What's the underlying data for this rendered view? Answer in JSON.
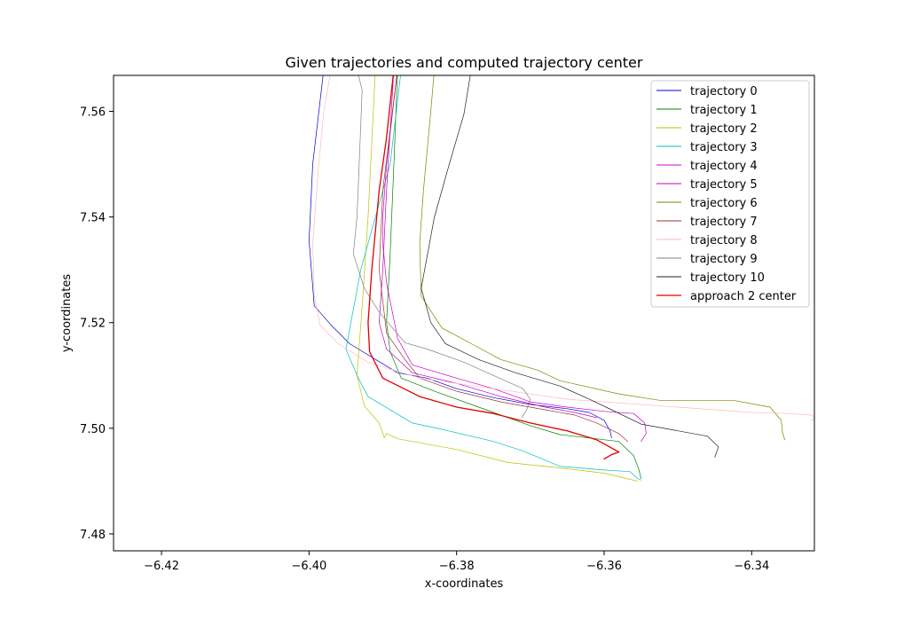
{
  "chart_data": {
    "type": "line",
    "title": "Given trajectories and computed trajectory center",
    "xlabel": "x-coordinates",
    "ylabel": "y-coordinates",
    "xlim": [
      -6.4265,
      -6.3315
    ],
    "ylim": [
      7.4768,
      7.5668
    ],
    "xticks": [
      {
        "value": -6.42,
        "label": "−6.42"
      },
      {
        "value": -6.4,
        "label": "−6.40"
      },
      {
        "value": -6.38,
        "label": "−6.38"
      },
      {
        "value": -6.36,
        "label": "−6.36"
      },
      {
        "value": -6.34,
        "label": "−6.34"
      }
    ],
    "yticks": [
      {
        "value": 7.48,
        "label": "7.48"
      },
      {
        "value": 7.5,
        "label": "7.50"
      },
      {
        "value": 7.52,
        "label": "7.52"
      },
      {
        "value": 7.54,
        "label": "7.54"
      },
      {
        "value": 7.56,
        "label": "7.56"
      }
    ],
    "grid": false,
    "legend_position": "top-right",
    "series": [
      {
        "name": "trajectory 0",
        "color": "#0000cc",
        "width": 0.7,
        "points": [
          [
            -6.398,
            7.568
          ],
          [
            -6.3995,
            7.55
          ],
          [
            -6.4,
            7.5355
          ],
          [
            -6.3993,
            7.5232
          ],
          [
            -6.397,
            7.5195
          ],
          [
            -6.3945,
            7.516
          ],
          [
            -6.388,
            7.5105
          ],
          [
            -6.384,
            7.5095
          ],
          [
            -6.38,
            7.5075
          ],
          [
            -6.375,
            7.5058
          ],
          [
            -6.37,
            7.5045
          ],
          [
            -6.365,
            7.5037
          ],
          [
            -6.362,
            7.503
          ],
          [
            -6.36,
            7.5015
          ],
          [
            -6.3592,
            7.4995
          ],
          [
            -6.359,
            7.4982
          ]
        ]
      },
      {
        "name": "trajectory 1",
        "color": "#008000",
        "width": 0.7,
        "points": [
          [
            -6.388,
            7.568
          ],
          [
            -6.3885,
            7.55
          ],
          [
            -6.389,
            7.533
          ],
          [
            -6.3895,
            7.52
          ],
          [
            -6.389,
            7.5145
          ],
          [
            -6.3875,
            7.5095
          ],
          [
            -6.383,
            7.507
          ],
          [
            -6.376,
            7.5035
          ],
          [
            -6.37,
            7.5005
          ],
          [
            -6.366,
            7.4988
          ],
          [
            -6.358,
            7.4975
          ],
          [
            -6.356,
            7.4948
          ],
          [
            -6.3553,
            7.4922
          ],
          [
            -6.355,
            7.4905
          ]
        ]
      },
      {
        "name": "trajectory 2",
        "color": "#bfbf00",
        "width": 0.7,
        "points": [
          [
            -6.391,
            7.568
          ],
          [
            -6.392,
            7.54
          ],
          [
            -6.3928,
            7.523
          ],
          [
            -6.3935,
            7.51
          ],
          [
            -6.3925,
            7.5042
          ],
          [
            -6.3905,
            7.501
          ],
          [
            -6.3898,
            7.4982
          ],
          [
            -6.3895,
            7.499
          ],
          [
            -6.388,
            7.498
          ],
          [
            -6.38,
            7.496
          ],
          [
            -6.373,
            7.4935
          ],
          [
            -6.366,
            7.4925
          ],
          [
            -6.36,
            7.4915
          ],
          [
            -6.3555,
            7.49
          ]
        ]
      },
      {
        "name": "trajectory 3",
        "color": "#00bfbf",
        "width": 0.7,
        "points": [
          [
            -6.3875,
            7.568
          ],
          [
            -6.389,
            7.55
          ],
          [
            -6.391,
            7.54
          ],
          [
            -6.393,
            7.53
          ],
          [
            -6.395,
            7.515
          ],
          [
            -6.3935,
            7.51
          ],
          [
            -6.392,
            7.506
          ],
          [
            -6.386,
            7.501
          ],
          [
            -6.382,
            7.4998
          ],
          [
            -6.375,
            7.4975
          ],
          [
            -6.371,
            7.4957
          ],
          [
            -6.366,
            7.4928
          ],
          [
            -6.36,
            7.4921
          ],
          [
            -6.3565,
            7.4918
          ],
          [
            -6.3555,
            7.4905
          ],
          [
            -6.355,
            7.4902
          ]
        ]
      },
      {
        "name": "trajectory 4",
        "color": "#cc00cc",
        "width": 0.7,
        "points": [
          [
            -6.388,
            7.568
          ],
          [
            -6.3895,
            7.55
          ],
          [
            -6.39,
            7.54
          ],
          [
            -6.39,
            7.535
          ],
          [
            -6.3895,
            7.5275
          ],
          [
            -6.388,
            7.517
          ],
          [
            -6.386,
            7.512
          ],
          [
            -6.38,
            7.5095
          ],
          [
            -6.375,
            7.5075
          ],
          [
            -6.37,
            7.505
          ],
          [
            -6.365,
            7.504
          ],
          [
            -6.36,
            7.5032
          ],
          [
            -6.356,
            7.5028
          ],
          [
            -6.3545,
            7.501
          ],
          [
            -6.3543,
            7.499
          ],
          [
            -6.355,
            7.4975
          ]
        ]
      },
      {
        "name": "trajectory 5",
        "color": "#bf00bf",
        "width": 0.7,
        "points": [
          [
            -6.3885,
            7.568
          ],
          [
            -6.3895,
            7.545
          ],
          [
            -6.39,
            7.53
          ],
          [
            -6.3905,
            7.52
          ],
          [
            -6.3895,
            7.515
          ],
          [
            -6.386,
            7.5105
          ],
          [
            -6.38,
            7.5085
          ],
          [
            -6.374,
            7.506
          ],
          [
            -6.368,
            7.504
          ],
          [
            -6.364,
            7.503
          ],
          [
            -6.361,
            7.502
          ]
        ]
      },
      {
        "name": "trajectory 6",
        "color": "#808000",
        "width": 0.7,
        "points": [
          [
            -6.383,
            7.568
          ],
          [
            -6.3835,
            7.56
          ],
          [
            -6.3845,
            7.545
          ],
          [
            -6.385,
            7.535
          ],
          [
            -6.3848,
            7.525
          ],
          [
            -6.382,
            7.519
          ],
          [
            -6.378,
            7.516
          ],
          [
            -6.374,
            7.513
          ],
          [
            -6.369,
            7.511
          ],
          [
            -6.366,
            7.509
          ],
          [
            -6.358,
            7.5065
          ],
          [
            -6.3525,
            7.5053
          ],
          [
            -6.345,
            7.5053
          ],
          [
            -6.3425,
            7.5053
          ],
          [
            -6.3375,
            7.504
          ],
          [
            -6.336,
            7.5015
          ],
          [
            -6.3358,
            7.499
          ],
          [
            -6.3355,
            7.4978
          ]
        ]
      },
      {
        "name": "trajectory 7",
        "color": "#993333",
        "width": 0.7,
        "points": [
          [
            -6.388,
            7.568
          ],
          [
            -6.39,
            7.545
          ],
          [
            -6.3905,
            7.53
          ],
          [
            -6.3895,
            7.518
          ],
          [
            -6.387,
            7.513
          ],
          [
            -6.385,
            7.5095
          ],
          [
            -6.38,
            7.507
          ],
          [
            -6.374,
            7.505
          ],
          [
            -6.368,
            7.5035
          ],
          [
            -6.364,
            7.5025
          ],
          [
            -6.361,
            7.501
          ],
          [
            -6.358,
            7.499
          ],
          [
            -6.3568,
            7.4975
          ]
        ]
      },
      {
        "name": "trajectory 8",
        "color": "#ffb6c1",
        "width": 0.7,
        "points": [
          [
            -6.397,
            7.568
          ],
          [
            -6.398,
            7.56
          ],
          [
            -6.3988,
            7.548
          ],
          [
            -6.3995,
            7.535
          ],
          [
            -6.3993,
            7.525
          ],
          [
            -6.3985,
            7.5195
          ],
          [
            -6.396,
            7.516
          ],
          [
            -6.392,
            7.5125
          ],
          [
            -6.385,
            7.5095
          ],
          [
            -6.375,
            7.5075
          ],
          [
            -6.365,
            7.5055
          ],
          [
            -6.35,
            7.504
          ],
          [
            -6.34,
            7.503
          ],
          [
            -6.335,
            7.5028
          ],
          [
            -6.332,
            7.5025
          ],
          [
            -6.331,
            7.5018
          ],
          [
            -6.332,
            7.5015
          ]
        ]
      },
      {
        "name": "trajectory 9",
        "color": "#808080",
        "width": 0.7,
        "points": [
          [
            -6.3935,
            7.568
          ],
          [
            -6.3928,
            7.564
          ],
          [
            -6.3932,
            7.55
          ],
          [
            -6.3935,
            7.54
          ],
          [
            -6.394,
            7.533
          ],
          [
            -6.3925,
            7.5265
          ],
          [
            -6.3905,
            7.522
          ],
          [
            -6.387,
            7.5162
          ],
          [
            -6.384,
            7.515
          ],
          [
            -6.379,
            7.5125
          ],
          [
            -6.375,
            7.51
          ],
          [
            -6.371,
            7.5075
          ],
          [
            -6.37,
            7.5055
          ],
          [
            -6.3705,
            7.5035
          ],
          [
            -6.3712,
            7.502
          ]
        ]
      },
      {
        "name": "trajectory 10",
        "color": "#222222",
        "width": 0.7,
        "points": [
          [
            -6.378,
            7.568
          ],
          [
            -6.379,
            7.5595
          ],
          [
            -6.381,
            7.55
          ],
          [
            -6.383,
            7.54
          ],
          [
            -6.3848,
            7.5265
          ],
          [
            -6.3835,
            7.52
          ],
          [
            -6.3815,
            7.516
          ],
          [
            -6.377,
            7.513
          ],
          [
            -6.372,
            7.5105
          ],
          [
            -6.366,
            7.508
          ],
          [
            -6.362,
            7.5055
          ],
          [
            -6.359,
            7.5035
          ],
          [
            -6.355,
            7.5008
          ],
          [
            -6.346,
            7.4985
          ],
          [
            -6.3445,
            7.4965
          ],
          [
            -6.345,
            7.4945
          ]
        ]
      },
      {
        "name": "approach 2 center",
        "color": "#dd0000",
        "width": 1.3,
        "points": [
          [
            -6.3885,
            7.568
          ],
          [
            -6.3895,
            7.555
          ],
          [
            -6.3905,
            7.545
          ],
          [
            -6.3915,
            7.53
          ],
          [
            -6.392,
            7.52
          ],
          [
            -6.3918,
            7.5145
          ],
          [
            -6.39,
            7.5095
          ],
          [
            -6.385,
            7.506
          ],
          [
            -6.38,
            7.504
          ],
          [
            -6.375,
            7.5028
          ],
          [
            -6.37,
            7.501
          ],
          [
            -6.365,
            7.4995
          ],
          [
            -6.361,
            7.4978
          ],
          [
            -6.358,
            7.4955
          ],
          [
            -6.359,
            7.495
          ],
          [
            -6.36,
            7.4942
          ]
        ]
      }
    ]
  }
}
